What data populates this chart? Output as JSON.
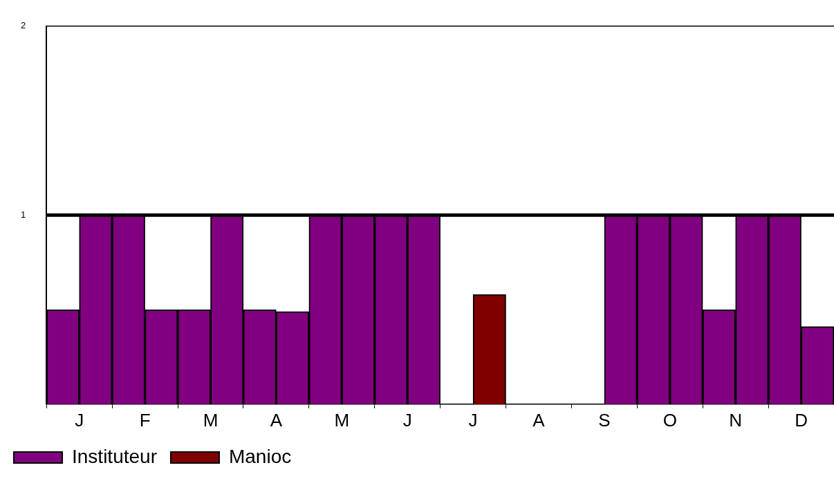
{
  "chart_data": {
    "type": "bar",
    "categories": [
      "J",
      null,
      "F",
      null,
      "M",
      null,
      "A",
      null,
      "M",
      null,
      "J",
      null,
      "J",
      null,
      "A",
      null,
      "S",
      null,
      "O",
      null,
      "N",
      null,
      "D",
      null
    ],
    "series": [
      {
        "name": "Instituteur",
        "color": "#800080",
        "values": [
          0.5,
          1,
          1,
          0.5,
          0.5,
          1,
          0.5,
          0.49,
          1,
          1,
          1,
          1,
          0,
          null,
          0,
          0,
          0,
          1,
          1,
          1,
          0.5,
          1,
          1,
          0.41
        ]
      },
      {
        "name": "Manioc",
        "color": "#800000",
        "values": [
          null,
          null,
          null,
          null,
          null,
          null,
          null,
          null,
          null,
          null,
          null,
          null,
          null,
          0.58,
          null,
          null,
          null,
          null,
          null,
          null,
          null,
          null,
          null,
          null
        ]
      }
    ],
    "ylim": [
      0,
      2
    ],
    "yticks": [
      1,
      2
    ],
    "ref_lines": [
      {
        "axis": "y",
        "value": 1,
        "color": "#000000"
      }
    ],
    "grid": false,
    "legend": "bottom left"
  }
}
